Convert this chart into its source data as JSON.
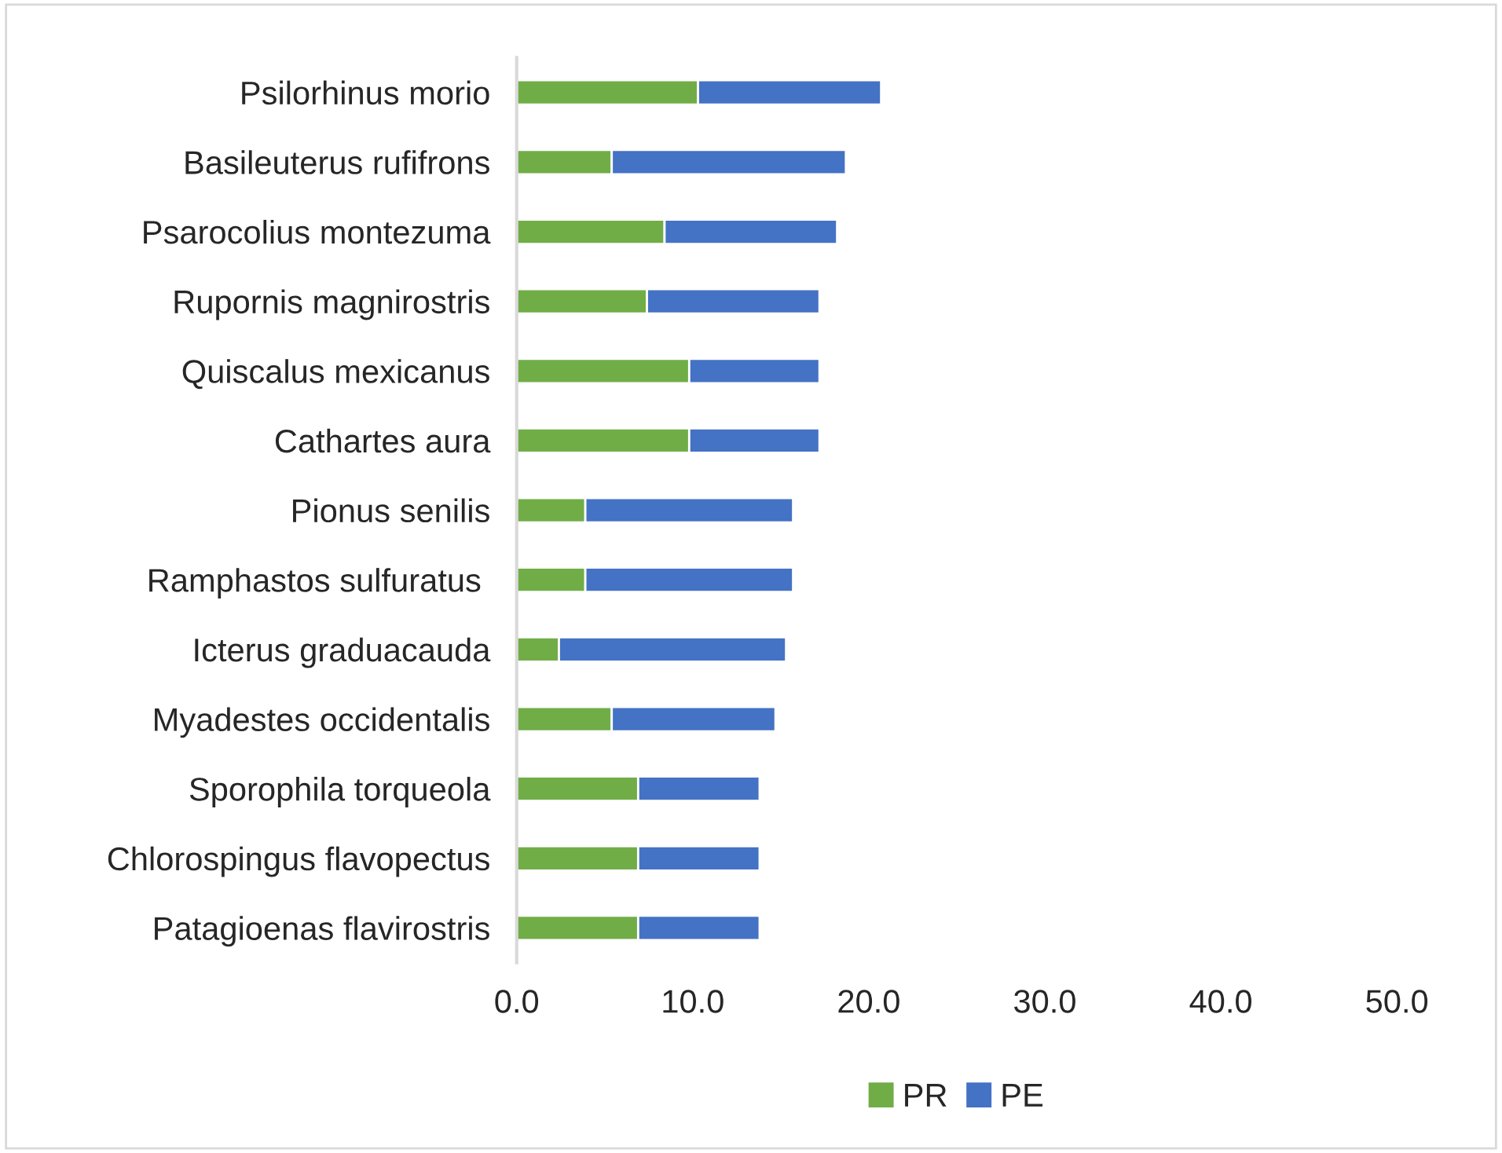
{
  "chart_data": {
    "type": "bar",
    "orientation": "horizontal",
    "stacked": true,
    "categories": [
      "Psilorhinus morio",
      "Basileuterus rufifrons",
      "Psarocolius montezuma",
      "Rupornis magnirostris",
      "Quiscalus mexicanus",
      "Cathartes aura",
      "Pionus senilis",
      "Ramphastos sulfuratus ",
      "Icterus graduacauda",
      "Myadestes occidentalis",
      "Sporophila torqueola",
      "Chlorospingus flavopectus",
      "Patagioenas flavirostris"
    ],
    "series": [
      {
        "name": "PR",
        "color": "#70ad47",
        "values": [
          10.3,
          5.4,
          8.4,
          7.4,
          9.8,
          9.8,
          3.9,
          3.9,
          2.4,
          5.4,
          6.9,
          6.9,
          6.9
        ]
      },
      {
        "name": "PE",
        "color": "#4472c4",
        "values": [
          10.4,
          13.3,
          9.8,
          9.8,
          7.4,
          7.4,
          11.8,
          11.8,
          12.9,
          9.3,
          6.9,
          6.9,
          6.9
        ]
      }
    ],
    "xlim": [
      0,
      50
    ],
    "xticks": [
      {
        "value": 0,
        "label": "0.0"
      },
      {
        "value": 10,
        "label": "10.0"
      },
      {
        "value": 20,
        "label": "20.0"
      },
      {
        "value": 30,
        "label": "30.0"
      },
      {
        "value": 40,
        "label": "40.0"
      },
      {
        "value": 50,
        "label": "50.0"
      }
    ],
    "grid": false,
    "legend": "bottom"
  }
}
